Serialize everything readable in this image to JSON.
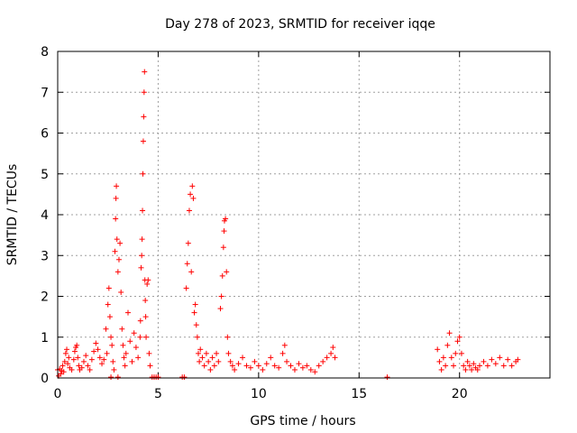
{
  "chart_data": {
    "type": "scatter",
    "title": "Day 278 of 2023, SRMTID for receiver iqqe",
    "xlabel": "GPS time / hours",
    "ylabel": "SRMTID / TECUs",
    "xlim": [
      0,
      24.5
    ],
    "ylim": [
      0,
      8
    ],
    "xticks": [
      0,
      5,
      10,
      15,
      20
    ],
    "yticks": [
      0,
      1,
      2,
      3,
      4,
      5,
      6,
      7,
      8
    ],
    "grid": true,
    "marker": "+",
    "color": "#ff0000",
    "series": [
      {
        "name": "SRMTID",
        "points": [
          [
            0.0,
            0.2
          ],
          [
            0.05,
            0.05
          ],
          [
            0.1,
            0.22
          ],
          [
            0.15,
            0.1
          ],
          [
            0.2,
            0.18
          ],
          [
            0.25,
            0.3
          ],
          [
            0.3,
            0.15
          ],
          [
            0.35,
            0.4
          ],
          [
            0.4,
            0.6
          ],
          [
            0.45,
            0.7
          ],
          [
            0.5,
            0.35
          ],
          [
            0.55,
            0.5
          ],
          [
            0.6,
            0.25
          ],
          [
            0.7,
            0.2
          ],
          [
            0.8,
            0.45
          ],
          [
            0.85,
            0.65
          ],
          [
            0.9,
            0.75
          ],
          [
            0.95,
            0.8
          ],
          [
            1.0,
            0.5
          ],
          [
            1.05,
            0.3
          ],
          [
            1.1,
            0.2
          ],
          [
            1.2,
            0.25
          ],
          [
            1.3,
            0.4
          ],
          [
            1.4,
            0.55
          ],
          [
            1.5,
            0.3
          ],
          [
            1.6,
            0.2
          ],
          [
            1.7,
            0.45
          ],
          [
            1.8,
            0.65
          ],
          [
            1.9,
            0.85
          ],
          [
            2.0,
            0.7
          ],
          [
            2.1,
            0.5
          ],
          [
            2.2,
            0.35
          ],
          [
            2.3,
            0.45
          ],
          [
            2.4,
            1.2
          ],
          [
            2.45,
            0.6
          ],
          [
            2.5,
            1.8
          ],
          [
            2.55,
            2.2
          ],
          [
            2.6,
            1.5
          ],
          [
            2.65,
            1.0
          ],
          [
            2.7,
            0.8
          ],
          [
            2.75,
            0.4
          ],
          [
            2.8,
            0.2
          ],
          [
            2.85,
            3.1
          ],
          [
            2.88,
            3.9
          ],
          [
            2.9,
            4.4
          ],
          [
            2.92,
            4.7
          ],
          [
            2.95,
            3.4
          ],
          [
            3.0,
            2.6
          ],
          [
            3.05,
            2.9
          ],
          [
            3.1,
            3.3
          ],
          [
            3.15,
            2.1
          ],
          [
            3.2,
            1.2
          ],
          [
            3.25,
            0.8
          ],
          [
            3.3,
            0.5
          ],
          [
            3.35,
            0.3
          ],
          [
            3.4,
            0.6
          ],
          [
            3.5,
            1.6
          ],
          [
            3.6,
            0.9
          ],
          [
            3.7,
            0.4
          ],
          [
            3.8,
            1.1
          ],
          [
            3.9,
            0.75
          ],
          [
            4.0,
            0.5
          ],
          [
            4.1,
            1.0
          ],
          [
            4.12,
            1.4
          ],
          [
            4.15,
            2.7
          ],
          [
            4.18,
            3.0
          ],
          [
            4.2,
            3.4
          ],
          [
            4.22,
            4.1
          ],
          [
            4.24,
            5.0
          ],
          [
            4.26,
            5.8
          ],
          [
            4.28,
            6.4
          ],
          [
            4.3,
            7.0
          ],
          [
            4.32,
            7.5
          ],
          [
            4.34,
            2.4
          ],
          [
            4.36,
            1.9
          ],
          [
            4.38,
            1.5
          ],
          [
            4.4,
            1.0
          ],
          [
            4.45,
            2.3
          ],
          [
            4.5,
            2.4
          ],
          [
            4.55,
            0.6
          ],
          [
            4.6,
            0.3
          ],
          [
            4.7,
            0.02
          ],
          [
            4.8,
            0.02
          ],
          [
            4.9,
            0.02
          ],
          [
            5.0,
            0.02
          ],
          [
            3.0,
            0.02
          ],
          [
            2.65,
            0.02
          ],
          [
            6.2,
            0.02
          ],
          [
            6.3,
            0.02
          ],
          [
            6.4,
            2.2
          ],
          [
            6.45,
            2.8
          ],
          [
            6.5,
            3.3
          ],
          [
            6.55,
            4.1
          ],
          [
            6.6,
            4.5
          ],
          [
            6.65,
            2.6
          ],
          [
            6.7,
            4.7
          ],
          [
            6.75,
            4.4
          ],
          [
            6.8,
            1.6
          ],
          [
            6.85,
            1.8
          ],
          [
            6.9,
            1.3
          ],
          [
            6.95,
            1.0
          ],
          [
            7.0,
            0.6
          ],
          [
            7.05,
            0.4
          ],
          [
            7.1,
            0.7
          ],
          [
            7.2,
            0.5
          ],
          [
            7.3,
            0.3
          ],
          [
            7.4,
            0.6
          ],
          [
            7.5,
            0.4
          ],
          [
            7.6,
            0.2
          ],
          [
            7.7,
            0.5
          ],
          [
            7.8,
            0.3
          ],
          [
            7.9,
            0.6
          ],
          [
            8.0,
            0.4
          ],
          [
            8.1,
            1.7
          ],
          [
            8.15,
            2.0
          ],
          [
            8.2,
            2.5
          ],
          [
            8.25,
            3.2
          ],
          [
            8.28,
            3.6
          ],
          [
            8.3,
            3.85
          ],
          [
            8.35,
            3.9
          ],
          [
            8.4,
            2.6
          ],
          [
            8.45,
            1.0
          ],
          [
            8.5,
            0.6
          ],
          [
            8.6,
            0.4
          ],
          [
            8.7,
            0.3
          ],
          [
            8.8,
            0.2
          ],
          [
            9.0,
            0.35
          ],
          [
            9.2,
            0.5
          ],
          [
            9.4,
            0.3
          ],
          [
            9.6,
            0.25
          ],
          [
            9.8,
            0.4
          ],
          [
            10.0,
            0.3
          ],
          [
            10.2,
            0.2
          ],
          [
            10.4,
            0.35
          ],
          [
            10.6,
            0.5
          ],
          [
            10.8,
            0.3
          ],
          [
            11.0,
            0.25
          ],
          [
            11.2,
            0.6
          ],
          [
            11.3,
            0.8
          ],
          [
            11.4,
            0.4
          ],
          [
            11.6,
            0.3
          ],
          [
            11.8,
            0.2
          ],
          [
            12.0,
            0.35
          ],
          [
            12.2,
            0.25
          ],
          [
            12.4,
            0.3
          ],
          [
            12.6,
            0.2
          ],
          [
            12.8,
            0.15
          ],
          [
            13.0,
            0.3
          ],
          [
            13.2,
            0.4
          ],
          [
            13.4,
            0.5
          ],
          [
            13.6,
            0.6
          ],
          [
            13.7,
            0.75
          ],
          [
            13.8,
            0.5
          ],
          [
            16.4,
            0.02
          ],
          [
            18.9,
            0.7
          ],
          [
            19.0,
            0.4
          ],
          [
            19.1,
            0.2
          ],
          [
            19.2,
            0.5
          ],
          [
            19.3,
            0.3
          ],
          [
            19.4,
            0.8
          ],
          [
            19.5,
            1.1
          ],
          [
            19.6,
            0.5
          ],
          [
            19.7,
            0.3
          ],
          [
            19.8,
            0.6
          ],
          [
            19.9,
            0.9
          ],
          [
            20.0,
            1.0
          ],
          [
            20.1,
            0.6
          ],
          [
            20.2,
            0.3
          ],
          [
            20.3,
            0.2
          ],
          [
            20.4,
            0.4
          ],
          [
            20.5,
            0.3
          ],
          [
            20.6,
            0.2
          ],
          [
            20.7,
            0.35
          ],
          [
            20.8,
            0.25
          ],
          [
            20.9,
            0.2
          ],
          [
            21.0,
            0.3
          ],
          [
            21.2,
            0.4
          ],
          [
            21.4,
            0.3
          ],
          [
            21.6,
            0.45
          ],
          [
            21.8,
            0.35
          ],
          [
            22.0,
            0.5
          ],
          [
            22.2,
            0.3
          ],
          [
            22.4,
            0.45
          ],
          [
            22.6,
            0.3
          ],
          [
            22.8,
            0.4
          ],
          [
            22.9,
            0.45
          ]
        ]
      }
    ]
  }
}
